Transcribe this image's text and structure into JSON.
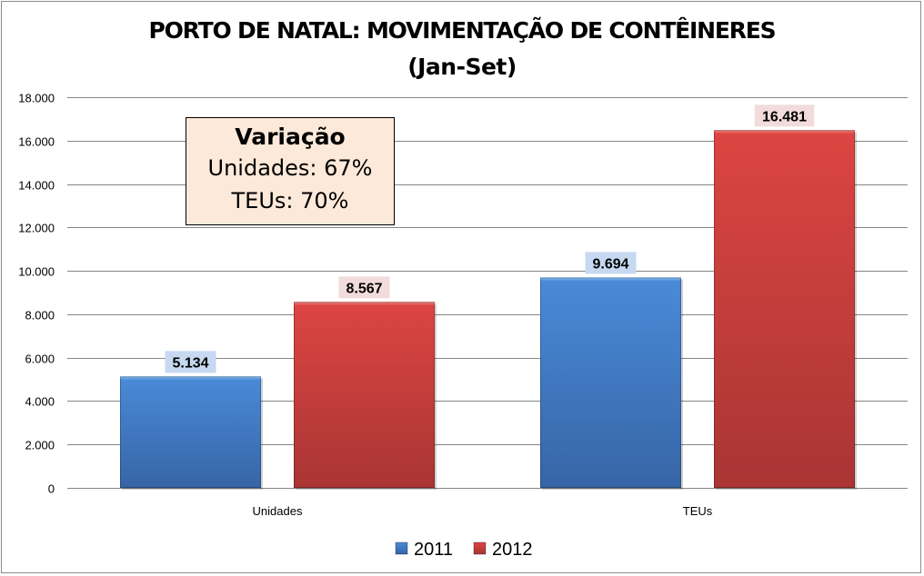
{
  "chart_data": {
    "type": "bar",
    "title": "PORTO DE NATAL: MOVIMENTAÇÃO DE CONTÊINERES",
    "subtitle": "(Jan-Set)",
    "xlabel": "",
    "ylabel": "",
    "categories": [
      "Unidades",
      "TEUs"
    ],
    "series": [
      {
        "name": "2011",
        "values": [
          5134,
          9694
        ],
        "labels": [
          "5.134",
          "9.694"
        ],
        "color": "#3f7fcc",
        "label_bg": "#c6d9f1"
      },
      {
        "name": "2012",
        "values": [
          8567,
          16481
        ],
        "labels": [
          "8.567",
          "16.481"
        ],
        "color": "#d43f3c",
        "label_bg": "#f2dcdb"
      }
    ],
    "ylim": [
      0,
      18000
    ],
    "yticks": [
      0,
      2000,
      4000,
      6000,
      8000,
      10000,
      12000,
      14000,
      16000,
      18000
    ],
    "ytick_labels": [
      "0",
      "2.000",
      "4.000",
      "6.000",
      "8.000",
      "10.000",
      "12.000",
      "14.000",
      "16.000",
      "18.000"
    ],
    "grid": true,
    "legend": {
      "position": "bottom",
      "entries": [
        "2011",
        "2012"
      ]
    },
    "annotation": {
      "heading": "Variação",
      "lines": [
        "Unidades:  67%",
        "TEUs: 70%"
      ]
    }
  }
}
